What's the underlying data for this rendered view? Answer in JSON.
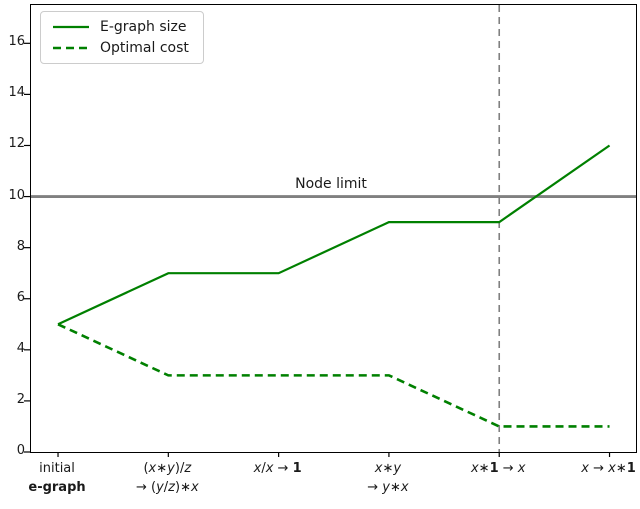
{
  "chart_data": {
    "type": "line",
    "title": "",
    "xlabel": "",
    "ylabel": "",
    "categories": [
      {
        "lines": [
          "initial",
          "e-graph"
        ],
        "math": false,
        "bold_lines": [
          1
        ]
      },
      {
        "lines": [
          "(x∗y)/z",
          "→ (y/z)∗x"
        ],
        "math": true
      },
      {
        "lines": [
          "x/x → 1"
        ],
        "math": true
      },
      {
        "lines": [
          "x∗y",
          "→ y∗x"
        ],
        "math": true
      },
      {
        "lines": [
          "x∗1 → x"
        ],
        "math": true
      },
      {
        "lines": [
          "x → x∗1"
        ],
        "math": true
      }
    ],
    "series": [
      {
        "name": "E-graph size",
        "values": [
          5,
          7,
          7,
          9,
          9,
          12
        ],
        "style": "solid",
        "color": "#008000"
      },
      {
        "name": "Optimal cost",
        "values": [
          5,
          3,
          3,
          3,
          1,
          1
        ],
        "style": "dashed",
        "color": "#008000"
      }
    ],
    "y_ticks": [
      0,
      2,
      4,
      6,
      8,
      10,
      12,
      14,
      16
    ],
    "ylim": [
      0,
      17.5
    ],
    "xlim": [
      -0.245,
      5.24
    ],
    "grid": "off",
    "legend": {
      "position": "upper-left"
    },
    "hline": {
      "y": 10,
      "color": "#808080",
      "label": "Node limit"
    },
    "vline": {
      "x": 4,
      "color": "#808080",
      "style": "dashed"
    },
    "annotations": {
      "node_limit": {
        "text": "Node limit",
        "y": 10
      }
    }
  }
}
